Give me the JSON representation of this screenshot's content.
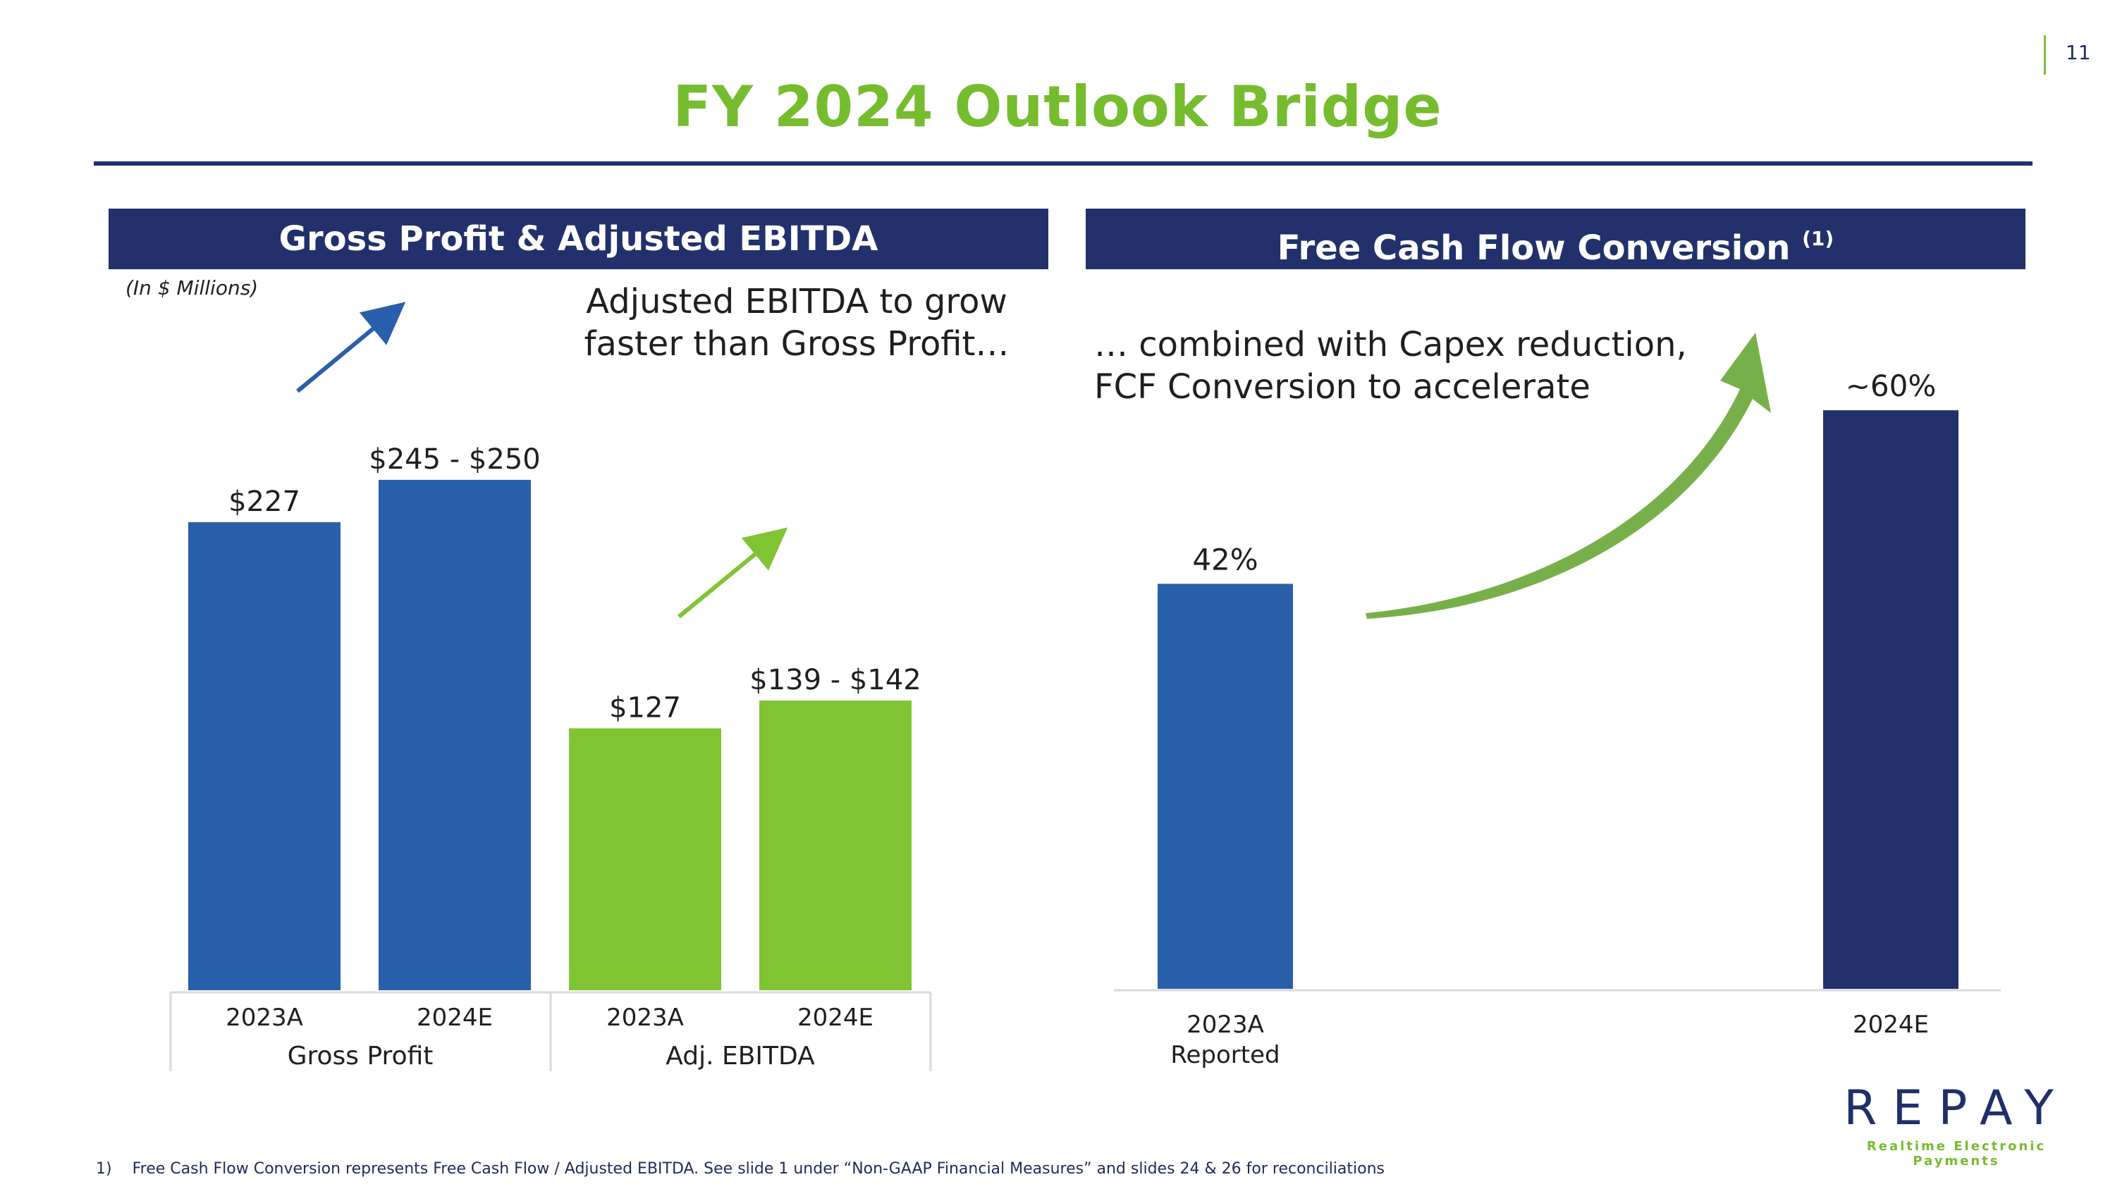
{
  "page_number": "11",
  "title": "FY 2024 Outlook Bridge",
  "left_panel": {
    "header": "Gross Profit & Adjusted EBITDA",
    "units_note": "(In $ Millions)",
    "callout": "Adjusted EBITDA to grow faster than Gross Profit…"
  },
  "right_panel": {
    "header": "Free Cash Flow Conversion",
    "header_footnote_ref": "(1)",
    "callout_line1": "… combined with Capex reduction,",
    "callout_line2": "FCF Conversion to accelerate"
  },
  "chart_data": [
    {
      "type": "bar",
      "title": "Gross Profit & Adjusted EBITDA",
      "ylabel": "(In $ Millions)",
      "groups": [
        "Gross Profit",
        "Adj. EBITDA"
      ],
      "categories": [
        "2023A",
        "2024E",
        "2023A",
        "2024E"
      ],
      "values": [
        227,
        247.5,
        127,
        140.5
      ],
      "data_labels": [
        "$227",
        "$245 - $250",
        "$127",
        "$139 - $142"
      ],
      "group_index": [
        0,
        0,
        1,
        1
      ],
      "colors": [
        "#2a5fab",
        "#2a5fab",
        "#80c333",
        "#80c333"
      ],
      "ylim": [
        0,
        270
      ]
    },
    {
      "type": "bar",
      "title": "Free Cash Flow Conversion",
      "categories": [
        "2023A",
        "2024E"
      ],
      "category_sublabels": [
        "Reported",
        ""
      ],
      "values": [
        42,
        60
      ],
      "data_labels": [
        "42%",
        "~60%"
      ],
      "colors": [
        "#2a5fab",
        "#22316b"
      ],
      "ylim": [
        0,
        66
      ]
    }
  ],
  "footnote": {
    "marker": "1)",
    "text": "Free Cash Flow Conversion represents Free Cash Flow / Adjusted EBITDA. See slide 1 under “Non-GAAP Financial Measures” and slides 24 & 26 for reconciliations"
  },
  "logo": {
    "wordmark": "REPAY",
    "tagline": "Realtime Electronic Payments"
  },
  "colors": {
    "title_green": "#76bc2f",
    "navy": "#22316b",
    "blue": "#2a5fab",
    "green": "#80c333",
    "arrow_green": "#77b04a"
  }
}
